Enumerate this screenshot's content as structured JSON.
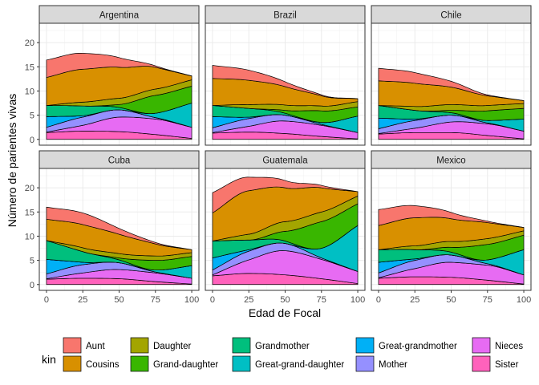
{
  "chart_data": {
    "type": "area",
    "stacked": true,
    "xlabel": "Edad de Focal",
    "ylabel": "Número de parientes vivas",
    "xlim": [
      0,
      100
    ],
    "ylim": [
      -1.2,
      24
    ],
    "x_ticks": [
      0,
      25,
      50,
      75,
      100
    ],
    "y_ticks": [
      0,
      5,
      10,
      15,
      20
    ],
    "legend_title": "kin",
    "legend_position": "bottom",
    "grid": true,
    "x": [
      0,
      25,
      50,
      75,
      100
    ],
    "series_order": [
      "Sister",
      "Nieces",
      "Mother",
      "Great-grandmother",
      "Great-grand-daughter",
      "Grandmother",
      "Grand-daughter",
      "Daughter",
      "Cousins",
      "Aunt"
    ],
    "legend_order": [
      "Aunt",
      "Cousins",
      "Daughter",
      "Grand-daughter",
      "Grandmother",
      "Great-grand-daughter",
      "Great-grandmother",
      "Mother",
      "Nieces",
      "Sister"
    ],
    "colors": {
      "Aunt": "#F8766D",
      "Cousins": "#D89000",
      "Daughter": "#A3A500",
      "Grand-daughter": "#39B600",
      "Grandmother": "#00BF7D",
      "Great-grand-daughter": "#00BFC4",
      "Great-grandmother": "#00B0F6",
      "Mother": "#9590FF",
      "Nieces": "#E76BF3",
      "Sister": "#FF62BC"
    },
    "panels": [
      {
        "name": "Argentina",
        "series": {
          "Sister": [
            1.4,
            1.7,
            1.6,
            1.0,
            0.2
          ],
          "Nieces": [
            0.1,
            1.2,
            3.0,
            3.2,
            2.3
          ],
          "Mother": [
            1.0,
            1.7,
            1.5,
            0.3,
            0.0
          ],
          "Great-grandmother": [
            2.2,
            0.3,
            0.0,
            0.0,
            0.0
          ],
          "Great-grand-daughter": [
            0.0,
            0.0,
            0.0,
            0.9,
            5.0
          ],
          "Grandmother": [
            2.3,
            2.0,
            0.5,
            0.0,
            0.0
          ],
          "Grand-daughter": [
            0.0,
            0.0,
            0.6,
            3.7,
            3.5
          ],
          "Daughter": [
            0.0,
            0.8,
            1.3,
            1.3,
            1.3
          ],
          "Cousins": [
            5.8,
            6.8,
            6.4,
            4.5,
            0.8
          ],
          "Aunt": [
            3.6,
            3.3,
            2.0,
            0.3,
            0.0
          ]
        }
      },
      {
        "name": "Brazil",
        "series": {
          "Sister": [
            1.3,
            1.5,
            1.2,
            0.6,
            0.1
          ],
          "Nieces": [
            0.1,
            1.2,
            2.6,
            2.3,
            1.3
          ],
          "Mother": [
            1.0,
            1.6,
            1.2,
            0.2,
            0.0
          ],
          "Great-grandmother": [
            2.3,
            0.3,
            0.0,
            0.0,
            0.0
          ],
          "Great-grand-daughter": [
            0.0,
            0.0,
            0.0,
            0.4,
            3.4
          ],
          "Grandmother": [
            2.3,
            1.8,
            0.4,
            0.0,
            0.0
          ],
          "Grand-daughter": [
            0.0,
            0.0,
            0.6,
            2.4,
            1.9
          ],
          "Daughter": [
            0.0,
            0.8,
            1.1,
            1.0,
            1.1
          ],
          "Cousins": [
            5.6,
            5.0,
            3.8,
            2.1,
            0.6
          ],
          "Aunt": [
            2.7,
            2.1,
            1.0,
            0.2,
            0.0
          ]
        }
      },
      {
        "name": "Chile",
        "series": {
          "Sister": [
            1.1,
            1.4,
            1.4,
            0.8,
            0.1
          ],
          "Nieces": [
            0.1,
            0.9,
            2.2,
            2.4,
            1.6
          ],
          "Mother": [
            1.0,
            1.6,
            1.4,
            0.2,
            0.0
          ],
          "Great-grandmother": [
            2.2,
            0.3,
            0.0,
            0.0,
            0.0
          ],
          "Great-grand-daughter": [
            0.0,
            0.0,
            0.0,
            0.5,
            2.5
          ],
          "Grandmother": [
            2.6,
            1.8,
            0.5,
            0.0,
            0.0
          ],
          "Grand-daughter": [
            0.0,
            0.0,
            0.5,
            2.0,
            2.2
          ],
          "Daughter": [
            0.0,
            0.8,
            1.2,
            1.1,
            1.0
          ],
          "Cousins": [
            5.1,
            4.8,
            3.6,
            2.0,
            0.6
          ],
          "Aunt": [
            2.6,
            2.2,
            1.2,
            0.2,
            0.0
          ]
        }
      },
      {
        "name": "Cuba",
        "series": {
          "Sister": [
            1.1,
            1.3,
            1.2,
            0.6,
            0.1
          ],
          "Nieces": [
            0.1,
            1.1,
            1.9,
            1.8,
            1.2
          ],
          "Mother": [
            1.0,
            1.7,
            1.4,
            0.2,
            0.0
          ],
          "Great-grandmother": [
            3.0,
            0.5,
            0.0,
            0.0,
            0.0
          ],
          "Great-grand-daughter": [
            0.0,
            0.0,
            0.0,
            0.4,
            2.6
          ],
          "Grandmother": [
            3.9,
            2.2,
            0.6,
            0.0,
            0.0
          ],
          "Grand-daughter": [
            0.0,
            0.0,
            0.4,
            2.0,
            1.9
          ],
          "Daughter": [
            0.0,
            0.8,
            0.9,
            0.9,
            0.8
          ],
          "Cousins": [
            4.4,
            4.8,
            4.0,
            2.5,
            0.6
          ],
          "Aunt": [
            2.5,
            2.4,
            1.2,
            0.3,
            0.0
          ]
        }
      },
      {
        "name": "Guatemala",
        "series": {
          "Sister": [
            1.8,
            2.3,
            2.0,
            1.2,
            0.2
          ],
          "Nieces": [
            0.2,
            2.8,
            5.0,
            4.0,
            2.5
          ],
          "Mother": [
            1.0,
            1.8,
            1.5,
            0.3,
            0.0
          ],
          "Great-grandmother": [
            2.5,
            0.3,
            0.0,
            0.0,
            0.0
          ],
          "Great-grand-daughter": [
            0.0,
            0.0,
            0.0,
            2.0,
            9.5
          ],
          "Grandmother": [
            3.5,
            2.0,
            0.5,
            0.0,
            0.0
          ],
          "Grand-daughter": [
            0.0,
            0.0,
            2.0,
            5.5,
            4.5
          ],
          "Daughter": [
            0.0,
            1.2,
            2.0,
            2.0,
            1.6
          ],
          "Cousins": [
            5.8,
            9.0,
            7.0,
            5.0,
            0.9
          ],
          "Aunt": [
            4.2,
            2.8,
            1.5,
            0.5,
            0.0
          ]
        }
      },
      {
        "name": "Mexico",
        "series": {
          "Sister": [
            1.3,
            1.6,
            1.5,
            0.9,
            0.1
          ],
          "Nieces": [
            0.1,
            1.7,
            3.1,
            3.1,
            1.9
          ],
          "Mother": [
            1.0,
            1.7,
            1.5,
            0.3,
            0.0
          ],
          "Great-grandmother": [
            2.2,
            0.3,
            0.0,
            0.0,
            0.0
          ],
          "Great-grand-daughter": [
            0.0,
            0.0,
            0.0,
            0.8,
            5.2
          ],
          "Grandmother": [
            2.6,
            1.9,
            0.6,
            0.0,
            0.0
          ],
          "Grand-daughter": [
            0.0,
            0.0,
            1.0,
            3.2,
            3.0
          ],
          "Daughter": [
            0.0,
            0.8,
            1.2,
            1.2,
            0.9
          ],
          "Cousins": [
            5.0,
            5.8,
            4.7,
            3.3,
            0.7
          ],
          "Aunt": [
            3.3,
            2.5,
            1.3,
            0.3,
            0.0
          ]
        }
      }
    ]
  }
}
